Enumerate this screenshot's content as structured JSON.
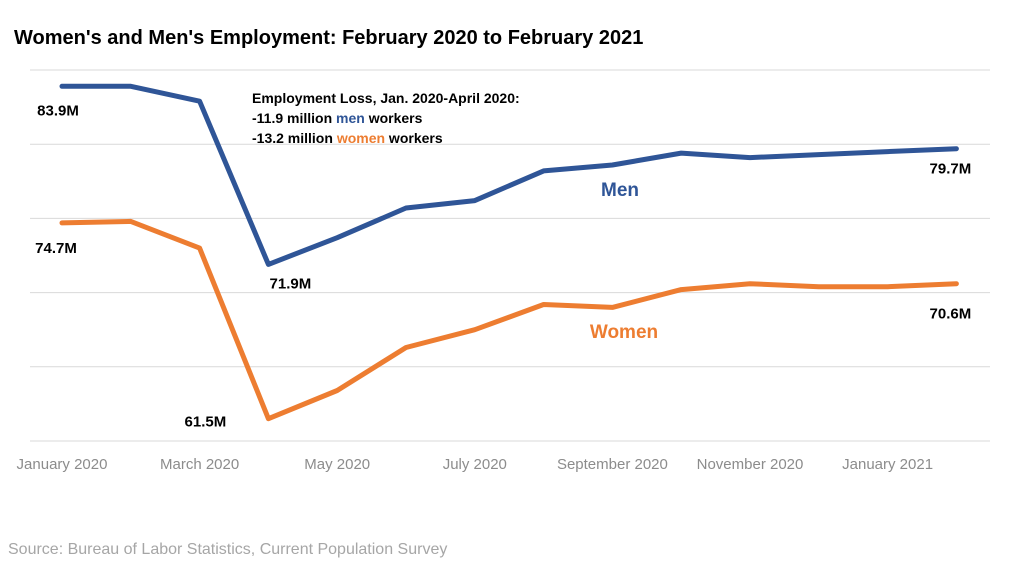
{
  "chart_data": {
    "type": "line",
    "title": "Women's and Men's Employment: February 2020 to February 2021",
    "xlabel": "",
    "ylabel": "",
    "x": [
      "Jan 2020",
      "Feb 2020",
      "Mar 2020",
      "Apr 2020",
      "May 2020",
      "Jun 2020",
      "Jul 2020",
      "Aug 2020",
      "Sep 2020",
      "Oct 2020",
      "Nov 2020",
      "Dec 2020",
      "Jan 2021",
      "Feb 2021"
    ],
    "x_tick_labels": [
      {
        "index": 0,
        "label": "January 2020"
      },
      {
        "index": 2,
        "label": "March 2020"
      },
      {
        "index": 4,
        "label": "May 2020"
      },
      {
        "index": 6,
        "label": "July 2020"
      },
      {
        "index": 8,
        "label": "September 2020"
      },
      {
        "index": 10,
        "label": "November 2020"
      },
      {
        "index": 12,
        "label": "January 2021"
      }
    ],
    "ylim": [
      60,
      85
    ],
    "y_gridlines": [
      60,
      65,
      70,
      75,
      80,
      85
    ],
    "series": [
      {
        "name": "Men",
        "color": "#2f5597",
        "values": [
          83.9,
          83.9,
          82.9,
          71.9,
          73.7,
          75.7,
          76.2,
          78.2,
          78.6,
          79.4,
          79.1,
          79.3,
          79.5,
          79.7
        ]
      },
      {
        "name": "Women",
        "color": "#ed7d31",
        "values": [
          74.7,
          74.8,
          73.0,
          61.5,
          63.4,
          66.3,
          67.5,
          69.2,
          69.0,
          70.2,
          70.6,
          70.4,
          70.4,
          70.6
        ]
      }
    ],
    "data_labels": [
      {
        "series": "Men",
        "index": 0,
        "text": "83.9M"
      },
      {
        "series": "Men",
        "index": 3,
        "text": "71.9M"
      },
      {
        "series": "Men",
        "index": 13,
        "text": "79.7M"
      },
      {
        "series": "Women",
        "index": 0,
        "text": "74.7M"
      },
      {
        "series": "Women",
        "index": 3,
        "text": "61.5M"
      },
      {
        "series": "Women",
        "index": 13,
        "text": "70.6M"
      }
    ],
    "annotation": {
      "title": "Employment Loss, Jan. 2020-April 2020:",
      "men_prefix": "-11.9 million ",
      "men_word": "men",
      "men_suffix": " workers",
      "women_prefix": "-13.2 million ",
      "women_word": "women",
      "women_suffix": " workers"
    },
    "legend": "inline labels near each series"
  },
  "source": "Source: Bureau of Labor Statistics, Current Population Survey"
}
